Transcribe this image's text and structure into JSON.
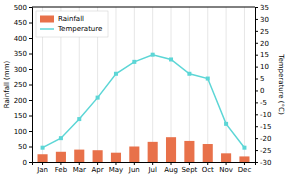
{
  "chart_data": {
    "type": "bar",
    "categories": [
      "Jan",
      "Feb",
      "Mar",
      "Apr",
      "May",
      "Jun",
      "Jul",
      "Aug",
      "Sept",
      "Oct",
      "Nov",
      "Dec"
    ],
    "series": [
      {
        "name": "Rainfall",
        "type": "bar",
        "color": "#E8714A",
        "values": [
          25,
          33,
          40,
          38,
          30,
          50,
          65,
          80,
          68,
          58,
          28,
          18
        ]
      },
      {
        "name": "Temperature",
        "type": "line",
        "axis": "y2",
        "color": "#5CD6D6",
        "marker": "square",
        "values": [
          -24,
          -20,
          -12,
          -3,
          7,
          12,
          15,
          13,
          7,
          5,
          -14,
          -24
        ]
      }
    ],
    "y_label": "Rainfall (mm)",
    "y2_label": "Temperature (°C)",
    "ylim": [
      0,
      500
    ],
    "yticks": [
      0,
      50,
      100,
      150,
      200,
      250,
      300,
      350,
      400,
      450,
      500
    ],
    "y2lim": [
      -30,
      35
    ],
    "y2ticks": [
      -30,
      -25,
      -20,
      -15,
      -10,
      -5,
      0,
      5,
      10,
      15,
      20,
      25,
      30,
      35
    ],
    "grid": "x",
    "legend": "upper left"
  }
}
